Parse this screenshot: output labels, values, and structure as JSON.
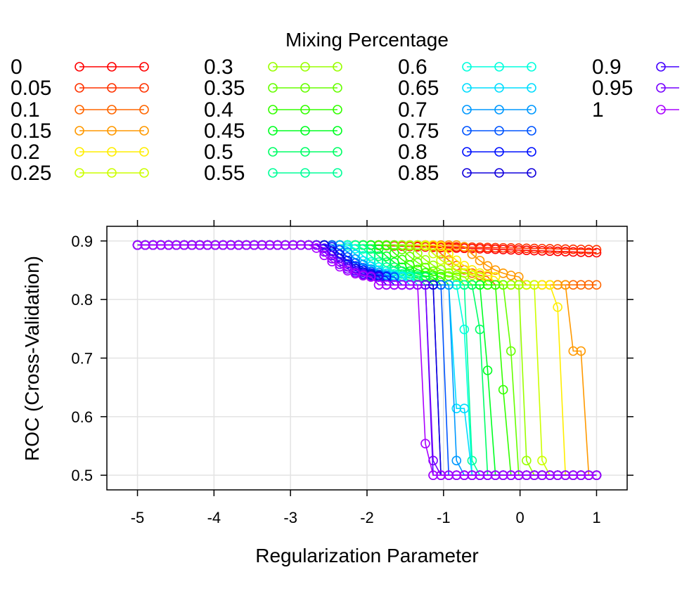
{
  "chart_data": {
    "type": "line",
    "title": "",
    "xlabel": "Regularization Parameter",
    "ylabel": "ROC (Cross-Validation)",
    "xlim": [
      -5.4,
      1.4
    ],
    "ylim": [
      0.475,
      0.925
    ],
    "x_ticks": [
      "-5",
      "-4",
      "-3",
      "-2",
      "-1",
      "0",
      "1"
    ],
    "y_ticks": [
      "0.5",
      "0.6",
      "0.7",
      "0.8",
      "0.9"
    ],
    "grid": true,
    "legend": {
      "title": "Mixing Percentage",
      "placement": "top",
      "columns": 4
    },
    "series": [
      {
        "name": "0",
        "color": "#FF0000",
        "drop_x": null,
        "mid_value": null,
        "plateau": null,
        "final": 0.88
      },
      {
        "name": "0.05",
        "color": "#FF3300",
        "drop_x": null,
        "mid_value": null,
        "plateau": null,
        "final": 0.885
      },
      {
        "name": "0.1",
        "color": "#FF6600",
        "drop_x": 0.35,
        "mid_value": null,
        "plateau": null,
        "final": 0.825
      },
      {
        "name": "0.15",
        "color": "#FF9900",
        "drop_x": 0.75,
        "mid_value": 0.712,
        "plateau": 0.825,
        "final": 0.5
      },
      {
        "name": "0.2",
        "color": "#FFEE00",
        "drop_x": 0.45,
        "mid_value": 0.787,
        "plateau": 0.825,
        "final": 0.5
      },
      {
        "name": "0.25",
        "color": "#CCFF00",
        "drop_x": 0.25,
        "mid_value": 0.525,
        "plateau": 0.825,
        "final": 0.5
      },
      {
        "name": "0.3",
        "color": "#99FF00",
        "drop_x": 0.05,
        "mid_value": 0.525,
        "plateau": 0.825,
        "final": 0.5
      },
      {
        "name": "0.35",
        "color": "#66FF00",
        "drop_x": -0.1,
        "mid_value": 0.712,
        "plateau": 0.825,
        "final": 0.5
      },
      {
        "name": "0.4",
        "color": "#33FF00",
        "drop_x": -0.25,
        "mid_value": 0.646,
        "plateau": 0.825,
        "final": 0.5
      },
      {
        "name": "0.45",
        "color": "#00FF22",
        "drop_x": -0.4,
        "mid_value": 0.679,
        "plateau": 0.825,
        "final": 0.5
      },
      {
        "name": "0.5",
        "color": "#00FF66",
        "drop_x": -0.5,
        "mid_value": 0.749,
        "plateau": 0.825,
        "final": 0.5
      },
      {
        "name": "0.55",
        "color": "#00FF99",
        "drop_x": -0.6,
        "mid_value": 0.525,
        "plateau": 0.825,
        "final": 0.5
      },
      {
        "name": "0.6",
        "color": "#00FFDD",
        "drop_x": -0.7,
        "mid_value": 0.749,
        "plateau": 0.825,
        "final": 0.5
      },
      {
        "name": "0.65",
        "color": "#00DDFF",
        "drop_x": -0.78,
        "mid_value": 0.614,
        "plateau": 0.825,
        "final": 0.5
      },
      {
        "name": "0.7",
        "color": "#0099FF",
        "drop_x": -0.85,
        "mid_value": 0.525,
        "plateau": 0.825,
        "final": 0.5
      },
      {
        "name": "0.75",
        "color": "#0055FF",
        "drop_x": -0.92,
        "mid_value": null,
        "plateau": 0.825,
        "final": 0.5
      },
      {
        "name": "0.8",
        "color": "#0011FF",
        "drop_x": -0.98,
        "mid_value": null,
        "plateau": 0.825,
        "final": 0.5
      },
      {
        "name": "0.85",
        "color": "#1100DD",
        "drop_x": -1.04,
        "mid_value": null,
        "plateau": 0.825,
        "final": 0.5
      },
      {
        "name": "0.9",
        "color": "#4400FF",
        "drop_x": -1.1,
        "mid_value": null,
        "plateau": 0.825,
        "final": 0.5
      },
      {
        "name": "0.95",
        "color": "#7700FF",
        "drop_x": -1.15,
        "mid_value": 0.525,
        "plateau": 0.825,
        "final": 0.5
      },
      {
        "name": "1",
        "color": "#AA00FF",
        "drop_x": -1.2,
        "mid_value": 0.554,
        "plateau": 0.825,
        "final": 0.5
      }
    ]
  }
}
